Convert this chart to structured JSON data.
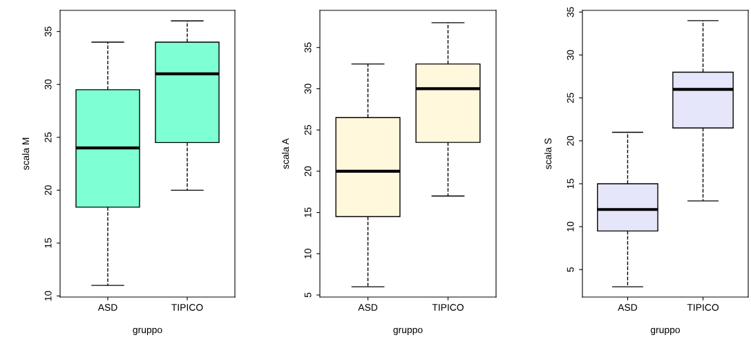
{
  "chart_data": [
    {
      "type": "box",
      "categories": [
        "ASD",
        "TIPICO"
      ],
      "xlabel": "gruppo",
      "ylabel": "scala M",
      "ylim": [
        9.9,
        37
      ],
      "yticks": [
        10,
        15,
        20,
        25,
        30,
        35
      ],
      "line_style": "dashed",
      "grid": false,
      "series": [
        {
          "color": "#7fffd4",
          "boxes": [
            {
              "low": 11,
              "q1": 18.4,
              "median": 24,
              "q3": 29.5,
              "high": 34
            },
            {
              "low": 20,
              "q1": 24.5,
              "median": 31,
              "q3": 34,
              "high": 36
            }
          ]
        }
      ]
    },
    {
      "type": "box",
      "categories": [
        "ASD",
        "TIPICO"
      ],
      "xlabel": "gruppo",
      "ylabel": "scala A",
      "ylim": [
        4.75,
        39.5
      ],
      "yticks": [
        5,
        10,
        15,
        20,
        25,
        30,
        35
      ],
      "line_style": "dashed",
      "grid": false,
      "series": [
        {
          "color": "#fff8dc",
          "boxes": [
            {
              "low": 6,
              "q1": 14.5,
              "median": 20,
              "q3": 26.5,
              "high": 33
            },
            {
              "low": 17,
              "q1": 23.5,
              "median": 30,
              "q3": 33,
              "high": 38
            }
          ]
        }
      ]
    },
    {
      "type": "box",
      "categories": [
        "ASD",
        "TIPICO"
      ],
      "xlabel": "gruppo",
      "ylabel": "scala S",
      "ylim": [
        1.8,
        35.2
      ],
      "yticks": [
        5,
        10,
        15,
        20,
        25,
        30,
        35
      ],
      "line_style": "dashed",
      "grid": false,
      "series": [
        {
          "color": "#e6e6fa",
          "boxes": [
            {
              "low": 3,
              "q1": 9.5,
              "median": 12,
              "q3": 15,
              "high": 21
            },
            {
              "low": 13,
              "q1": 21.5,
              "median": 26,
              "q3": 28,
              "high": 34
            }
          ]
        }
      ]
    }
  ]
}
